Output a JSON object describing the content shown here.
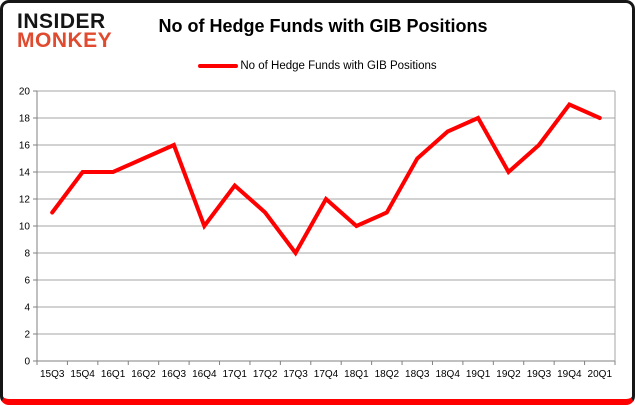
{
  "header": {
    "logo_line1": "INSIDER",
    "logo_line2": "MONKEY",
    "title": "No of Hedge Funds with GIB Positions"
  },
  "legend": {
    "label": "No of Hedge Funds with GIB Positions",
    "color": "#fe0000"
  },
  "chart_data": {
    "type": "line",
    "title": "No of Hedge Funds with GIB Positions",
    "categories": [
      "15Q3",
      "15Q4",
      "16Q1",
      "16Q2",
      "16Q3",
      "16Q4",
      "17Q1",
      "17Q2",
      "17Q3",
      "17Q4",
      "18Q1",
      "18Q2",
      "18Q3",
      "18Q4",
      "19Q1",
      "19Q2",
      "19Q3",
      "19Q4",
      "20Q1"
    ],
    "series": [
      {
        "name": "No of Hedge Funds with GIB Positions",
        "color": "#fe0000",
        "values": [
          11,
          14,
          14,
          15,
          16,
          10,
          13,
          11,
          8,
          12,
          10,
          11,
          15,
          17,
          18,
          14,
          16,
          19,
          18
        ]
      }
    ],
    "ylim": [
      0,
      20
    ],
    "yticks": [
      0,
      2,
      4,
      6,
      8,
      10,
      12,
      14,
      16,
      18,
      20
    ],
    "grid": "horizontal",
    "legend_position": "top",
    "gridline_color": "#a6a6a6",
    "axis_color": "#808080"
  }
}
